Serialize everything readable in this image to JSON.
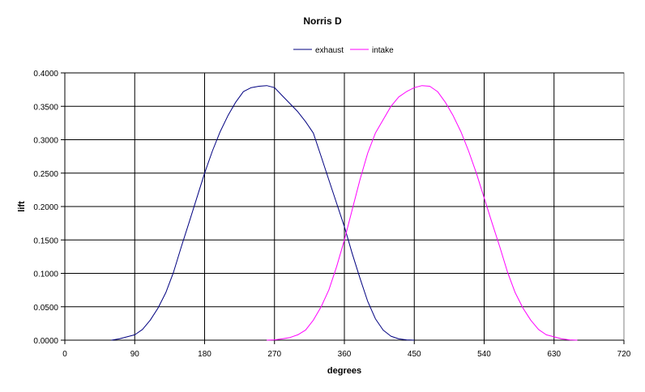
{
  "chart_data": {
    "type": "line",
    "title": "Norris D",
    "xlabel": "degrees",
    "ylabel": "lift",
    "xlim": [
      0,
      720
    ],
    "ylim": [
      0,
      0.4
    ],
    "x_ticks": [
      "0",
      "90",
      "180",
      "270",
      "360",
      "450",
      "540",
      "630",
      "720"
    ],
    "y_ticks": [
      "0.0000",
      "0.0500",
      "0.1000",
      "0.1500",
      "0.2000",
      "0.2500",
      "0.3000",
      "0.3500",
      "0.4000"
    ],
    "grid": true,
    "legend_position": "top",
    "series": [
      {
        "name": "exhaust",
        "color": "#000080",
        "x": [
          60,
          70,
          80,
          90,
          100,
          110,
          120,
          130,
          140,
          150,
          160,
          170,
          180,
          190,
          200,
          210,
          220,
          230,
          240,
          250,
          260,
          270,
          280,
          290,
          300,
          310,
          320,
          330,
          340,
          350,
          360,
          370,
          380,
          390,
          400,
          410,
          420,
          430,
          440,
          450
        ],
        "y": [
          0.0,
          0.002,
          0.005,
          0.008,
          0.016,
          0.03,
          0.048,
          0.071,
          0.102,
          0.14,
          0.176,
          0.213,
          0.25,
          0.283,
          0.312,
          0.336,
          0.356,
          0.372,
          0.378,
          0.38,
          0.381,
          0.378,
          0.366,
          0.354,
          0.342,
          0.327,
          0.31,
          0.275,
          0.24,
          0.205,
          0.17,
          0.13,
          0.093,
          0.058,
          0.032,
          0.015,
          0.006,
          0.002,
          0.0005,
          0.0
        ]
      },
      {
        "name": "intake",
        "color": "#ff00ff",
        "x": [
          260,
          270,
          280,
          290,
          300,
          310,
          320,
          330,
          340,
          350,
          360,
          370,
          380,
          390,
          400,
          410,
          420,
          430,
          440,
          450,
          460,
          470,
          480,
          490,
          500,
          510,
          520,
          530,
          540,
          550,
          560,
          570,
          580,
          590,
          600,
          610,
          620,
          630,
          640,
          650,
          660
        ],
        "y": [
          0.0,
          0.0005,
          0.002,
          0.004,
          0.008,
          0.015,
          0.03,
          0.05,
          0.075,
          0.11,
          0.15,
          0.195,
          0.24,
          0.28,
          0.31,
          0.33,
          0.35,
          0.364,
          0.372,
          0.378,
          0.381,
          0.38,
          0.372,
          0.356,
          0.336,
          0.312,
          0.283,
          0.25,
          0.213,
          0.176,
          0.14,
          0.102,
          0.071,
          0.048,
          0.03,
          0.016,
          0.008,
          0.005,
          0.002,
          0.0005,
          0.0
        ]
      }
    ]
  }
}
